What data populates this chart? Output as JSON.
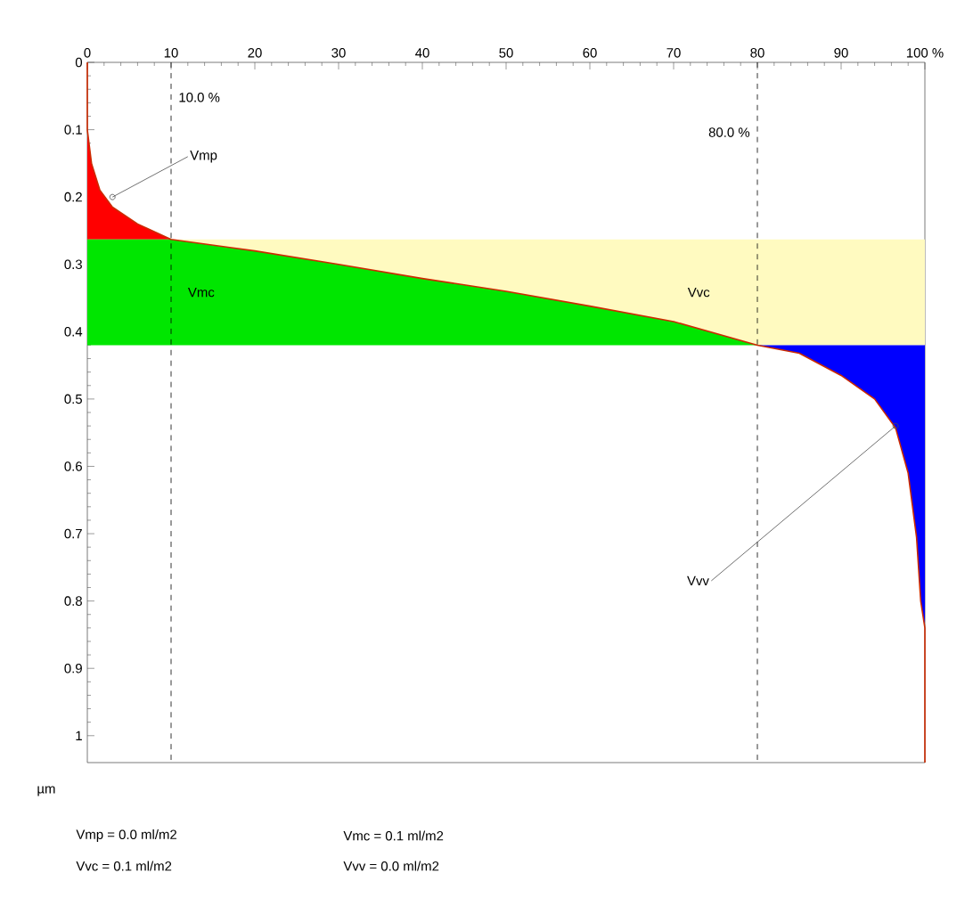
{
  "chart_data": {
    "type": "line",
    "ylabel": "µm",
    "xlim": [
      0,
      100
    ],
    "xticks": [
      0,
      10,
      20,
      30,
      40,
      50,
      60,
      70,
      80,
      90,
      {
        "value": 100,
        "label": "100 %"
      }
    ],
    "ylim": [
      1.04,
      0
    ],
    "yticks": [
      0,
      0.1,
      0.2,
      0.3,
      0.4,
      0.5,
      0.6,
      0.7,
      0.8,
      0.9,
      1
    ],
    "series": [
      {
        "type": "area",
        "color": "#ff0000",
        "x": [
          0,
          0,
          0.5,
          1.5,
          3,
          6,
          10,
          0
        ],
        "values": [
          0,
          0.1,
          0.15,
          0.19,
          0.215,
          0.24,
          0.263,
          0.263
        ]
      },
      {
        "type": "area",
        "name": "Vmc",
        "color": "#00e600",
        "x": [
          0,
          10,
          20,
          30,
          40,
          50,
          60,
          70,
          80,
          0
        ],
        "values": [
          0.263,
          0.263,
          0.28,
          0.3,
          0.321,
          0.34,
          0.362,
          0.385,
          0.42,
          0.42
        ]
      },
      {
        "type": "area",
        "name": "Vvc",
        "color": "#fffac0",
        "x": [
          10,
          20,
          30,
          40,
          50,
          60,
          70,
          80,
          100,
          100
        ],
        "values": [
          0.263,
          0.28,
          0.3,
          0.321,
          0.34,
          0.362,
          0.385,
          0.42,
          0.42,
          0.263
        ]
      },
      {
        "type": "area",
        "color": "#0000ff",
        "x": [
          80,
          85,
          90,
          94,
          96.5,
          98,
          99,
          99.5,
          100,
          100
        ],
        "values": [
          0.42,
          0.432,
          0.465,
          0.5,
          0.543,
          0.61,
          0.705,
          0.8,
          0.84,
          0.42
        ]
      },
      {
        "color": "#cc2a00",
        "x": [
          0,
          0,
          0.5,
          1.5,
          3,
          6,
          10,
          20,
          30,
          40,
          50,
          60,
          70,
          80,
          85,
          90,
          94,
          96.5,
          98,
          99,
          99.5,
          100,
          100
        ],
        "values": [
          0,
          0.1,
          0.15,
          0.19,
          0.215,
          0.24,
          0.263,
          0.28,
          0.3,
          0.321,
          0.34,
          0.362,
          0.385,
          0.42,
          0.432,
          0.465,
          0.5,
          0.543,
          0.61,
          0.705,
          0.8,
          0.84,
          1.04
        ]
      }
    ],
    "ref_lines": [
      {
        "axis": "x",
        "value": 10,
        "label": "10.0 %",
        "line_style": "dashed",
        "color": "#000000"
      },
      {
        "axis": "x",
        "value": 80,
        "label": "80.0 %",
        "line_style": "dashed",
        "color": "#000000"
      }
    ],
    "annotations": [
      {
        "text": "Vmp",
        "x": 3,
        "y": 0.2
      },
      {
        "text": "Vvv",
        "x": 96.5,
        "y": 0.54
      },
      "Vmp = 0.0 ml/m2",
      "Vmc = 0.1 ml/m2",
      "Vvc = 0.1 ml/m2",
      "Vvv = 0.0 ml/m2"
    ]
  }
}
